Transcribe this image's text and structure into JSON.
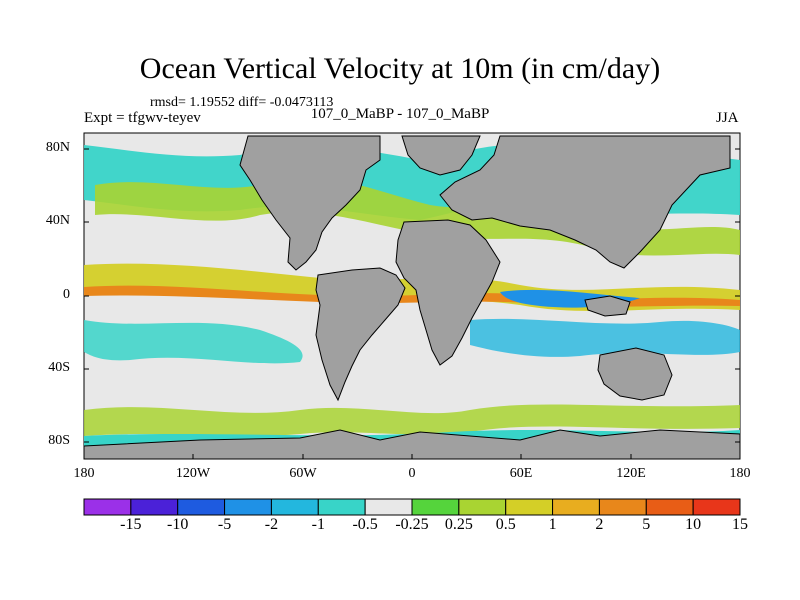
{
  "map": {
    "title": "Ocean Vertical Velocity at 10m (in cm/day)",
    "stats": "rmsd= 1.19552 diff= -0.0473113",
    "left_label": "Expt = tfgwv-teyev",
    "center_label": "107_0_MaBP - 107_0_MaBP",
    "right_label": "JJA",
    "y_ticks": [
      "80N",
      "40N",
      "0",
      "40S",
      "80S"
    ],
    "x_ticks": [
      "180",
      "120W",
      "60W",
      "0",
      "60E",
      "120E",
      "180"
    ],
    "land_color": "#a0a0a0",
    "colorbar": {
      "labels": [
        "-15",
        "-10",
        "-5",
        "-2",
        "-1",
        "-0.5",
        "-0.25",
        "0.25",
        "0.5",
        "1",
        "2",
        "5",
        "10",
        "15"
      ],
      "colors": [
        "#9b30e8",
        "#4b21d8",
        "#1e5be0",
        "#1f91e6",
        "#23b7de",
        "#38d4c8",
        "#e8e8e8",
        "#55d43c",
        "#a9d432",
        "#d4cf27",
        "#e8ad1f",
        "#e8871b",
        "#e85d16",
        "#e8361a"
      ]
    }
  }
}
